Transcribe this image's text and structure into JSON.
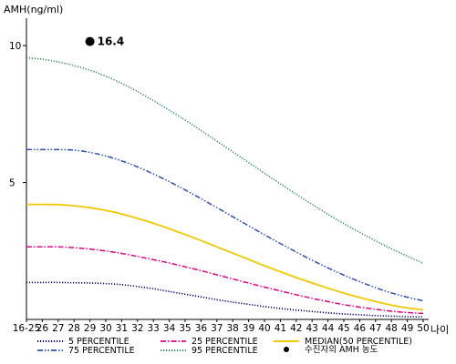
{
  "chart_data": {
    "type": "line",
    "ylabel": "AMH(ng/ml)",
    "xlabel": "나이",
    "ylim": [
      0,
      11
    ],
    "yticks": [
      5,
      10
    ],
    "ytick_labels": [
      "5",
      "10"
    ],
    "categories": [
      "16-25",
      "26",
      "27",
      "28",
      "29",
      "30",
      "31",
      "32",
      "33",
      "34",
      "35",
      "36",
      "37",
      "38",
      "39",
      "40",
      "41",
      "42",
      "43",
      "44",
      "45",
      "46",
      "47",
      "48",
      "49",
      "50"
    ],
    "series": [
      {
        "name": "5 PERCENTILE",
        "color": "#000080",
        "dash": "dotted",
        "values": [
          1.35,
          1.35,
          1.35,
          1.34,
          1.33,
          1.31,
          1.27,
          1.2,
          1.12,
          1.02,
          0.92,
          0.82,
          0.72,
          0.63,
          0.55,
          0.47,
          0.4,
          0.34,
          0.29,
          0.24,
          0.2,
          0.17,
          0.14,
          0.12,
          0.1,
          0.09
        ]
      },
      {
        "name": "25 PERCENTILE",
        "color": "#e6007e",
        "dash": "dashdot",
        "values": [
          2.65,
          2.65,
          2.65,
          2.62,
          2.57,
          2.5,
          2.41,
          2.3,
          2.18,
          2.06,
          1.92,
          1.78,
          1.63,
          1.48,
          1.33,
          1.18,
          1.04,
          0.9,
          0.77,
          0.65,
          0.54,
          0.45,
          0.37,
          0.3,
          0.25,
          0.22
        ]
      },
      {
        "name": "MEDIAN(50 PERCENTILE)",
        "color": "#f2c800",
        "dash": "solid",
        "values": [
          4.2,
          4.2,
          4.19,
          4.15,
          4.08,
          3.98,
          3.85,
          3.69,
          3.51,
          3.31,
          3.1,
          2.88,
          2.65,
          2.42,
          2.19,
          1.96,
          1.74,
          1.53,
          1.33,
          1.14,
          0.96,
          0.8,
          0.65,
          0.52,
          0.42,
          0.35
        ]
      },
      {
        "name": "75 PERCENTILE",
        "color": "#2b4fbf",
        "dash": "dashdotdot",
        "values": [
          6.2,
          6.2,
          6.2,
          6.18,
          6.1,
          5.97,
          5.79,
          5.57,
          5.31,
          5.03,
          4.73,
          4.41,
          4.08,
          3.75,
          3.42,
          3.09,
          2.77,
          2.46,
          2.16,
          1.88,
          1.62,
          1.38,
          1.16,
          0.97,
          0.81,
          0.68
        ]
      },
      {
        "name": "95 PERCENTILE",
        "color": "#2e8b57",
        "dash": "dotted",
        "values": [
          9.55,
          9.5,
          9.4,
          9.27,
          9.1,
          8.88,
          8.62,
          8.32,
          7.99,
          7.64,
          7.28,
          6.9,
          6.51,
          6.12,
          5.73,
          5.34,
          4.95,
          4.57,
          4.2,
          3.84,
          3.5,
          3.18,
          2.87,
          2.58,
          2.31,
          2.05
        ]
      }
    ],
    "points": [
      {
        "name": "수진자의 AMH 농도",
        "x": "29",
        "y": 10.15,
        "label": "16.4",
        "color": "#000000"
      }
    ],
    "legend": "bottom",
    "grid": false
  }
}
